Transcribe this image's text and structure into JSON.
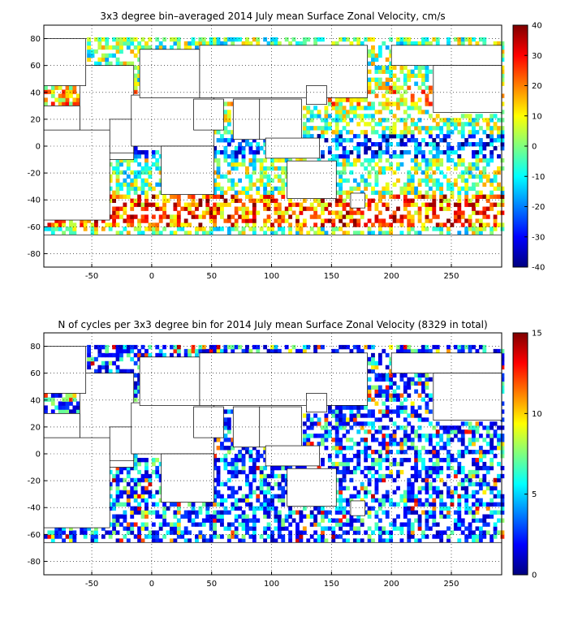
{
  "chart_data": [
    {
      "type": "heatmap",
      "title": "3x3 degree bin–averaged 2014 July mean Surface Zonal Velocity, cm/s",
      "xlabel": "",
      "ylabel": "",
      "xlim": [
        -90,
        292
      ],
      "ylim": [
        -90,
        90
      ],
      "x_ticks": [
        "-50",
        "0",
        "50",
        "100",
        "150",
        "200",
        "250"
      ],
      "x_tick_values": [
        -50,
        0,
        50,
        100,
        150,
        200,
        250
      ],
      "y_ticks": [
        "80",
        "60",
        "40",
        "20",
        "0",
        "-20",
        "-40",
        "-60",
        "-80"
      ],
      "y_tick_values": [
        80,
        60,
        40,
        20,
        0,
        -20,
        -40,
        -60,
        -80
      ],
      "grid": true,
      "bin_size_deg": 3,
      "colormap": "jet",
      "colorbar": {
        "min": -40,
        "max": 40,
        "ticks": [
          "40",
          "30",
          "20",
          "10",
          "0",
          "-10",
          "-20",
          "-30",
          "-40"
        ],
        "tick_values": [
          40,
          30,
          20,
          10,
          0,
          -10,
          -20,
          -30,
          -40
        ]
      }
    },
    {
      "type": "heatmap",
      "title": "N of cycles per 3x3 degree bin for 2014 July mean Surface Zonal Velocity (8329 in total)",
      "xlabel": "",
      "ylabel": "",
      "xlim": [
        -90,
        292
      ],
      "ylim": [
        -90,
        90
      ],
      "x_ticks": [
        "-50",
        "0",
        "50",
        "100",
        "150",
        "200",
        "250"
      ],
      "x_tick_values": [
        -50,
        0,
        50,
        100,
        150,
        200,
        250
      ],
      "y_ticks": [
        "80",
        "60",
        "40",
        "20",
        "0",
        "-20",
        "-40",
        "-60",
        "-80"
      ],
      "y_tick_values": [
        80,
        60,
        40,
        20,
        0,
        -20,
        -40,
        -60,
        -80
      ],
      "grid": true,
      "bin_size_deg": 3,
      "colormap": "jet",
      "colorbar": {
        "min": 0,
        "max": 15,
        "ticks": [
          "15",
          "10",
          "5",
          "0"
        ],
        "tick_values": [
          15,
          10,
          5,
          0
        ]
      }
    }
  ],
  "colors": {
    "land_outline": "#000000",
    "grid": "#000000",
    "jet_stops": [
      "#00007f",
      "#0000ff",
      "#007fff",
      "#00ffff",
      "#7fff7f",
      "#ffff00",
      "#ff7f00",
      "#ff0000",
      "#7f0000"
    ]
  }
}
